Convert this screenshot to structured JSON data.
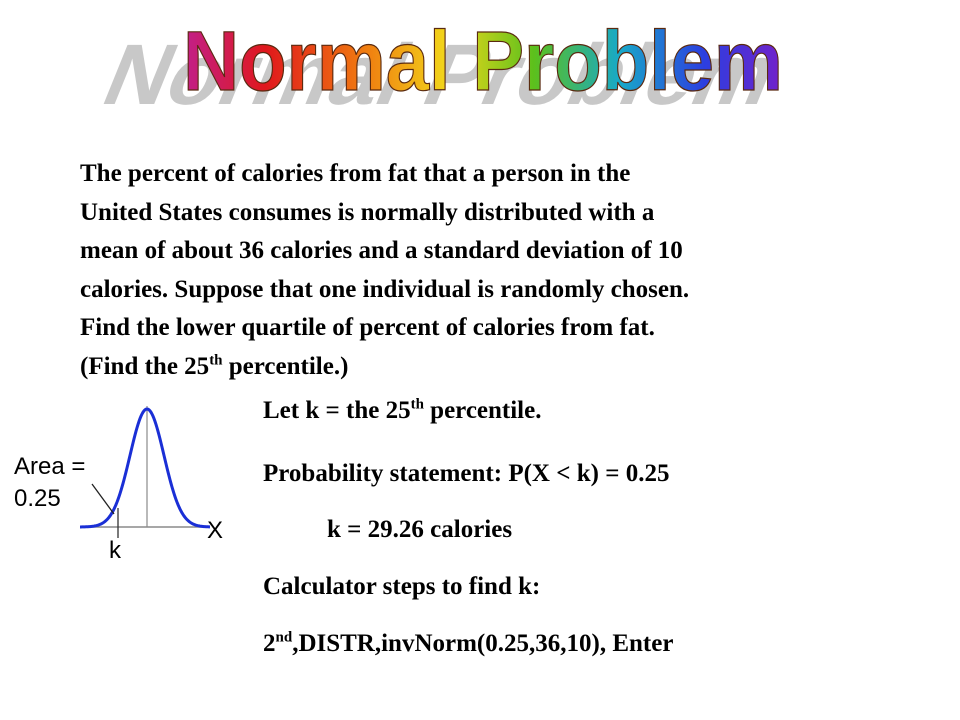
{
  "title": "Normal Problem",
  "problem": {
    "lines": [
      "The percent of calories from fat that a person in the",
      "United States consumes is normally distributed with a",
      "mean of about 36 calories and a standard deviation of 10",
      "calories.  Suppose that one individual is randomly chosen.",
      "Find the lower quartile of percent of calories from fat."
    ],
    "last_line_before": "(Find the 25",
    "last_line_sup": "th",
    "last_line_after": " percentile.)"
  },
  "diagram": {
    "area_label_1": "Area =",
    "area_label_2": "0.25",
    "x_label": "X",
    "k_label": "k",
    "curve_color": "#1a2fd6",
    "shade_note": "left tail area 0.25"
  },
  "solution": {
    "let_before": "Let k = the 25",
    "let_sup": "th",
    "let_after": "  percentile.",
    "probability": "Probability statement:  P(X < k) = 0.25",
    "result": "k = 29.26 calories",
    "calc_title": "Calculator steps to find k:",
    "calc_before": "2",
    "calc_sup": "nd",
    "calc_after": ",DISTR,invNorm(0.25,36,10), Enter"
  }
}
